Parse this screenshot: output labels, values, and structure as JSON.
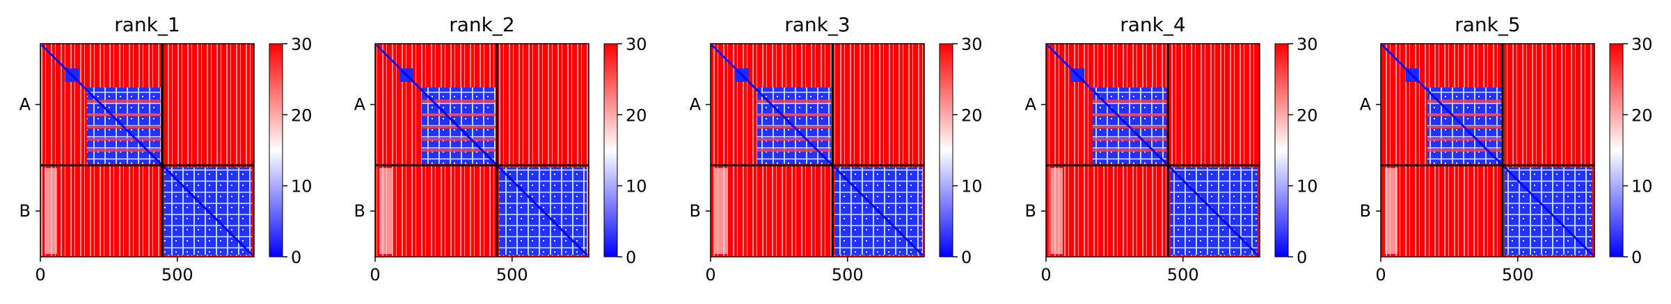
{
  "chart_data": {
    "type": "heatmap",
    "colormap": {
      "low": "#0000ff",
      "mid": "#ffffff",
      "high": "#ff0000"
    },
    "value_range": [
      0,
      30
    ],
    "colorbar_ticks": [
      "0",
      "10",
      "20",
      "30"
    ],
    "x_ticks": [
      {
        "value": 0,
        "label": "0"
      },
      {
        "value": 500,
        "label": "500"
      }
    ],
    "matrix_size": 780,
    "chains": [
      {
        "label": "A",
        "start": 0,
        "end": 445
      },
      {
        "label": "B",
        "start": 445,
        "end": 780
      }
    ],
    "panels": [
      {
        "title": "rank_1"
      },
      {
        "title": "rank_2"
      },
      {
        "title": "rank_3"
      },
      {
        "title": "rank_4"
      },
      {
        "title": "rank_5"
      }
    ]
  }
}
